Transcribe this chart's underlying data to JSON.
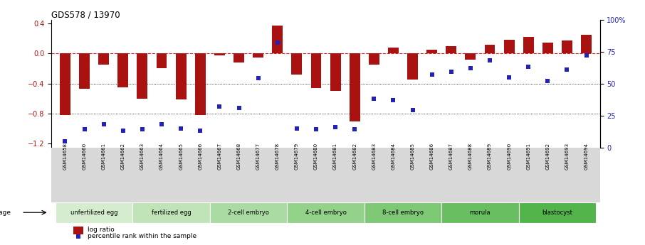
{
  "title": "GDS578 / 13970",
  "samples": [
    "GSM14658",
    "GSM14660",
    "GSM14661",
    "GSM14662",
    "GSM14663",
    "GSM14664",
    "GSM14665",
    "GSM14666",
    "GSM14667",
    "GSM14668",
    "GSM14677",
    "GSM14678",
    "GSM14679",
    "GSM14680",
    "GSM14681",
    "GSM14682",
    "GSM14683",
    "GSM14684",
    "GSM14685",
    "GSM14686",
    "GSM14687",
    "GSM14688",
    "GSM14689",
    "GSM14690",
    "GSM14691",
    "GSM14692",
    "GSM14693",
    "GSM14694"
  ],
  "log_ratio": [
    -0.82,
    -0.47,
    -0.15,
    -0.45,
    -0.6,
    -0.2,
    -0.61,
    -0.82,
    -0.03,
    -0.12,
    -0.05,
    0.37,
    -0.28,
    -0.46,
    -0.5,
    -0.9,
    -0.15,
    0.08,
    -0.35,
    0.05,
    0.1,
    -0.08,
    0.12,
    0.18,
    0.22,
    0.14,
    0.17,
    0.25
  ],
  "percentile": [
    5,
    14,
    18,
    13,
    14,
    18,
    15,
    13,
    32,
    31,
    54,
    82,
    15,
    14,
    16,
    14,
    38,
    37,
    29,
    57,
    59,
    62,
    68,
    55,
    63,
    52,
    61,
    72
  ],
  "stages": [
    {
      "label": "unfertilized egg",
      "start": 0,
      "end": 4
    },
    {
      "label": "fertilized egg",
      "start": 4,
      "end": 8
    },
    {
      "label": "2-cell embryo",
      "start": 8,
      "end": 12
    },
    {
      "label": "4-cell embryo",
      "start": 12,
      "end": 16
    },
    {
      "label": "8-cell embryo",
      "start": 16,
      "end": 20
    },
    {
      "label": "morula",
      "start": 20,
      "end": 24
    },
    {
      "label": "blastocyst",
      "start": 24,
      "end": 28
    }
  ],
  "stage_colors": [
    "#d5edce",
    "#c0e4b8",
    "#aadba2",
    "#94d28c",
    "#7ec876",
    "#68be60",
    "#52b44a"
  ],
  "bar_color": "#aa1111",
  "dot_color": "#2222bb",
  "hline_color": "#cc2222",
  "ylim_left": [
    -1.25,
    0.45
  ],
  "ylim_right": [
    0,
    100
  ],
  "yticks_left": [
    -1.2,
    -0.8,
    -0.4,
    0.0,
    0.4
  ],
  "yticks_right": [
    0,
    25,
    50,
    75,
    100
  ],
  "legend_labels": [
    "log ratio",
    "percentile rank within the sample"
  ],
  "background_color": "#ffffff"
}
